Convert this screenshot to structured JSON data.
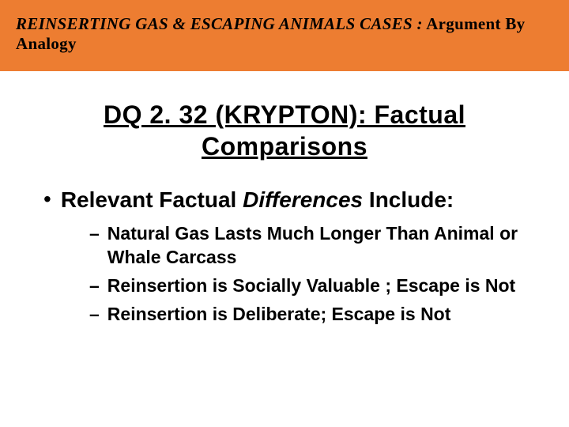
{
  "colors": {
    "header_bg": "#ed7d31",
    "header_text": "#000000",
    "title_text": "#000000",
    "body_text": "#000000",
    "page_bg": "#ffffff"
  },
  "header": {
    "italic_part": "REINSERTING GAS & ESCAPING ANIMALS CASES :",
    "non_italic_part": " Argument By Analogy"
  },
  "title": {
    "line1": "DQ 2. 32 (KRYPTON):  Factual",
    "line2": "Comparisons"
  },
  "main_bullet": {
    "prefix": "Relevant Factual ",
    "italic": "Differences",
    "suffix": " Include:"
  },
  "sub_items": [
    "Natural Gas Lasts Much Longer Than Animal or Whale Carcass",
    "Reinsertion is Socially Valuable ; Escape is Not",
    "Reinsertion is Deliberate; Escape is Not"
  ]
}
